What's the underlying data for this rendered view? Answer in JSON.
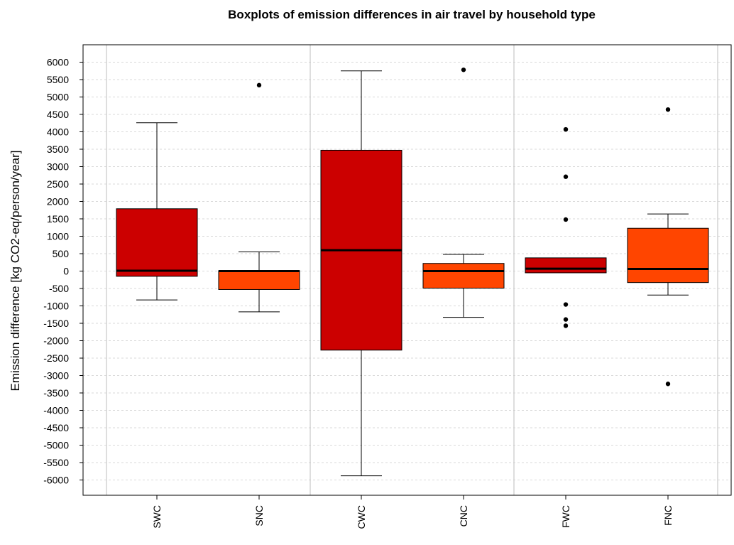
{
  "chart_data": {
    "type": "boxplot",
    "title": "Boxplots of emission differences in air travel by household type",
    "xlabel": "",
    "ylabel": "Emission difference [kg CO2-eq/person/year]",
    "ylim": [
      -6500,
      6500
    ],
    "yticks": [
      6000,
      5500,
      5000,
      4500,
      4000,
      3500,
      3000,
      2500,
      2000,
      1500,
      1000,
      500,
      0,
      -500,
      -1000,
      -1500,
      -2000,
      -2500,
      -3000,
      -3500,
      -4000,
      -4500,
      -5000,
      -5500,
      -6000
    ],
    "grid": true,
    "categories": [
      "SWC",
      "SNC",
      "CWC",
      "CNC",
      "FWC",
      "FNC"
    ],
    "boxes": [
      {
        "label": "SWC",
        "whisker_low": -830,
        "q1": -150,
        "median": 10,
        "q3": 1790,
        "whisker_high": 4260,
        "outliers": [],
        "color": "#cc0000"
      },
      {
        "label": "SNC",
        "whisker_low": -1170,
        "q1": -530,
        "median": 0,
        "q3": 10,
        "whisker_high": 550,
        "outliers": [
          5340
        ],
        "color": "#ff4500"
      },
      {
        "label": "CWC",
        "whisker_low": -5880,
        "q1": -2270,
        "median": 600,
        "q3": 3470,
        "whisker_high": 5750,
        "outliers": [],
        "color": "#cc0000"
      },
      {
        "label": "CNC",
        "whisker_low": -1330,
        "q1": -490,
        "median": 0,
        "q3": 220,
        "whisker_high": 480,
        "outliers": [
          5780
        ],
        "color": "#ff4500"
      },
      {
        "label": "FWC",
        "whisker_low": -50,
        "q1": -50,
        "median": 70,
        "q3": 380,
        "whisker_high": 380,
        "outliers": [
          4070,
          2710,
          1480,
          -960,
          -1390,
          -1570
        ],
        "color": "#cc0000"
      },
      {
        "label": "FNC",
        "whisker_low": -690,
        "q1": -330,
        "median": 60,
        "q3": 1230,
        "whisker_high": 1640,
        "outliers": [
          4640,
          -3240
        ],
        "color": "#ff4500"
      }
    ]
  }
}
